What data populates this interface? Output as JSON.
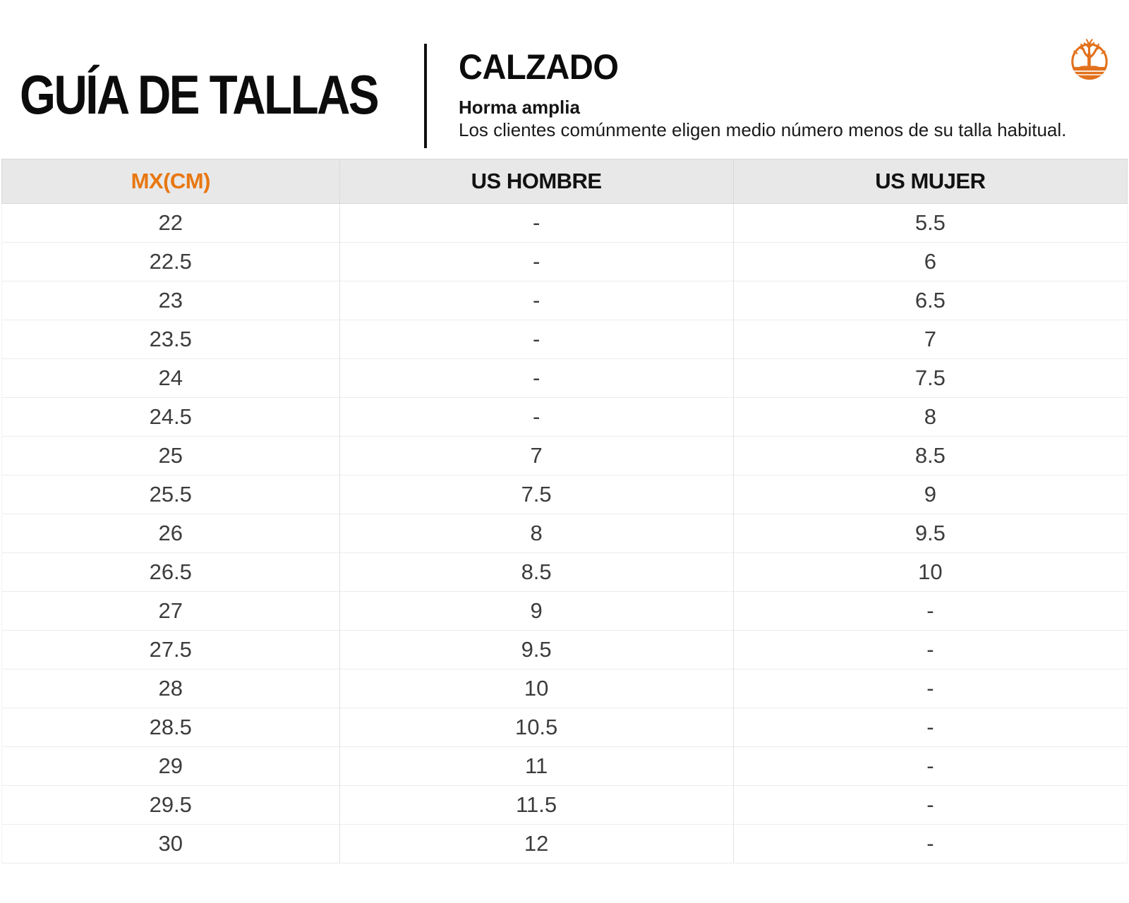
{
  "header": {
    "title": "GUÍA DE TALLAS",
    "section_title": "CALZADO",
    "fit_label": "Horma amplia",
    "fit_note": "Los clientes comúnmente eligen medio número menos de su talla habitual.",
    "logo": "timberland-tree-logo"
  },
  "colors": {
    "accent_orange": "#E8770F",
    "logo_orange": "#E2711D",
    "header_row_bg": "#E8E8E8",
    "data_text": "#3C3C3C"
  },
  "table": {
    "columns": [
      "MX(CM)",
      "US HOMBRE",
      "US MUJER"
    ],
    "column_keys": [
      "mx-cm",
      "us-hombre",
      "us-mujer"
    ],
    "rows": [
      [
        "22",
        "-",
        "5.5"
      ],
      [
        "22.5",
        "-",
        "6"
      ],
      [
        "23",
        "-",
        "6.5"
      ],
      [
        "23.5",
        "-",
        "7"
      ],
      [
        "24",
        "-",
        "7.5"
      ],
      [
        "24.5",
        "-",
        "8"
      ],
      [
        "25",
        "7",
        "8.5"
      ],
      [
        "25.5",
        "7.5",
        "9"
      ],
      [
        "26",
        "8",
        "9.5"
      ],
      [
        "26.5",
        "8.5",
        "10"
      ],
      [
        "27",
        "9",
        "-"
      ],
      [
        "27.5",
        "9.5",
        "-"
      ],
      [
        "28",
        "10",
        "-"
      ],
      [
        "28.5",
        "10.5",
        "-"
      ],
      [
        "29",
        "11",
        "-"
      ],
      [
        "29.5",
        "11.5",
        "-"
      ],
      [
        "30",
        "12",
        "-"
      ]
    ]
  }
}
